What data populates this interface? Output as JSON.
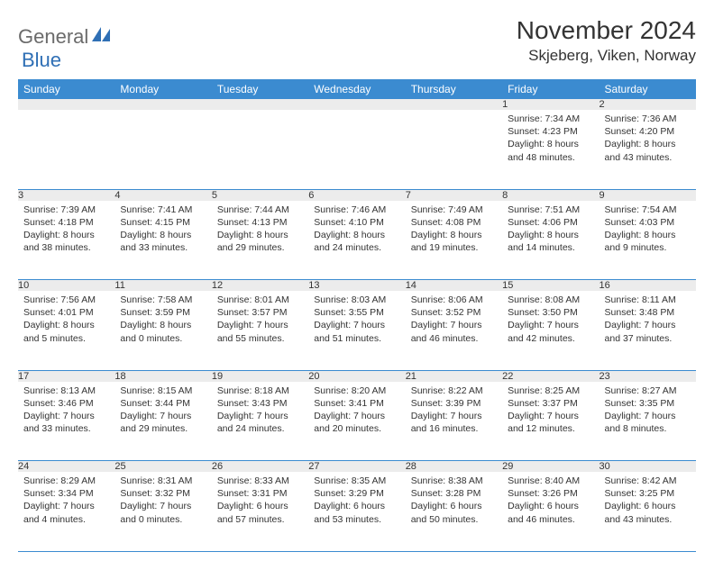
{
  "brand": {
    "part1": "General",
    "part2": "Blue"
  },
  "title": "November 2024",
  "location": "Skjeberg, Viken, Norway",
  "colors": {
    "header_bg": "#3b8bd0",
    "daynum_bg": "#ececec",
    "rule": "#3b8bd0",
    "brand_gray": "#6b6b6b",
    "brand_blue": "#2f6fb5"
  },
  "weekdays": [
    "Sunday",
    "Monday",
    "Tuesday",
    "Wednesday",
    "Thursday",
    "Friday",
    "Saturday"
  ],
  "weeks": [
    [
      null,
      null,
      null,
      null,
      null,
      {
        "d": "1",
        "sr": "7:34 AM",
        "ss": "4:23 PM",
        "dl": "8 hours and 48 minutes."
      },
      {
        "d": "2",
        "sr": "7:36 AM",
        "ss": "4:20 PM",
        "dl": "8 hours and 43 minutes."
      }
    ],
    [
      {
        "d": "3",
        "sr": "7:39 AM",
        "ss": "4:18 PM",
        "dl": "8 hours and 38 minutes."
      },
      {
        "d": "4",
        "sr": "7:41 AM",
        "ss": "4:15 PM",
        "dl": "8 hours and 33 minutes."
      },
      {
        "d": "5",
        "sr": "7:44 AM",
        "ss": "4:13 PM",
        "dl": "8 hours and 29 minutes."
      },
      {
        "d": "6",
        "sr": "7:46 AM",
        "ss": "4:10 PM",
        "dl": "8 hours and 24 minutes."
      },
      {
        "d": "7",
        "sr": "7:49 AM",
        "ss": "4:08 PM",
        "dl": "8 hours and 19 minutes."
      },
      {
        "d": "8",
        "sr": "7:51 AM",
        "ss": "4:06 PM",
        "dl": "8 hours and 14 minutes."
      },
      {
        "d": "9",
        "sr": "7:54 AM",
        "ss": "4:03 PM",
        "dl": "8 hours and 9 minutes."
      }
    ],
    [
      {
        "d": "10",
        "sr": "7:56 AM",
        "ss": "4:01 PM",
        "dl": "8 hours and 5 minutes."
      },
      {
        "d": "11",
        "sr": "7:58 AM",
        "ss": "3:59 PM",
        "dl": "8 hours and 0 minutes."
      },
      {
        "d": "12",
        "sr": "8:01 AM",
        "ss": "3:57 PM",
        "dl": "7 hours and 55 minutes."
      },
      {
        "d": "13",
        "sr": "8:03 AM",
        "ss": "3:55 PM",
        "dl": "7 hours and 51 minutes."
      },
      {
        "d": "14",
        "sr": "8:06 AM",
        "ss": "3:52 PM",
        "dl": "7 hours and 46 minutes."
      },
      {
        "d": "15",
        "sr": "8:08 AM",
        "ss": "3:50 PM",
        "dl": "7 hours and 42 minutes."
      },
      {
        "d": "16",
        "sr": "8:11 AM",
        "ss": "3:48 PM",
        "dl": "7 hours and 37 minutes."
      }
    ],
    [
      {
        "d": "17",
        "sr": "8:13 AM",
        "ss": "3:46 PM",
        "dl": "7 hours and 33 minutes."
      },
      {
        "d": "18",
        "sr": "8:15 AM",
        "ss": "3:44 PM",
        "dl": "7 hours and 29 minutes."
      },
      {
        "d": "19",
        "sr": "8:18 AM",
        "ss": "3:43 PM",
        "dl": "7 hours and 24 minutes."
      },
      {
        "d": "20",
        "sr": "8:20 AM",
        "ss": "3:41 PM",
        "dl": "7 hours and 20 minutes."
      },
      {
        "d": "21",
        "sr": "8:22 AM",
        "ss": "3:39 PM",
        "dl": "7 hours and 16 minutes."
      },
      {
        "d": "22",
        "sr": "8:25 AM",
        "ss": "3:37 PM",
        "dl": "7 hours and 12 minutes."
      },
      {
        "d": "23",
        "sr": "8:27 AM",
        "ss": "3:35 PM",
        "dl": "7 hours and 8 minutes."
      }
    ],
    [
      {
        "d": "24",
        "sr": "8:29 AM",
        "ss": "3:34 PM",
        "dl": "7 hours and 4 minutes."
      },
      {
        "d": "25",
        "sr": "8:31 AM",
        "ss": "3:32 PM",
        "dl": "7 hours and 0 minutes."
      },
      {
        "d": "26",
        "sr": "8:33 AM",
        "ss": "3:31 PM",
        "dl": "6 hours and 57 minutes."
      },
      {
        "d": "27",
        "sr": "8:35 AM",
        "ss": "3:29 PM",
        "dl": "6 hours and 53 minutes."
      },
      {
        "d": "28",
        "sr": "8:38 AM",
        "ss": "3:28 PM",
        "dl": "6 hours and 50 minutes."
      },
      {
        "d": "29",
        "sr": "8:40 AM",
        "ss": "3:26 PM",
        "dl": "6 hours and 46 minutes."
      },
      {
        "d": "30",
        "sr": "8:42 AM",
        "ss": "3:25 PM",
        "dl": "6 hours and 43 minutes."
      }
    ]
  ],
  "labels": {
    "sunrise": "Sunrise:",
    "sunset": "Sunset:",
    "daylight": "Daylight:"
  }
}
